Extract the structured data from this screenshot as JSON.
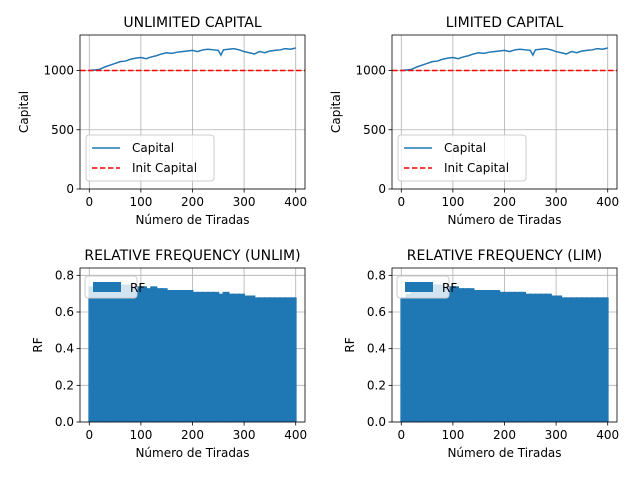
{
  "colors": {
    "series_line": "#1f77b4",
    "init_line": "#ff0000",
    "bars": "#1f77b4",
    "grid": "#b0b0b0",
    "axes": "#000000",
    "legend_border": "#cccccc"
  },
  "chart_data": [
    {
      "type": "line",
      "title": "UNLIMITED CAPITAL",
      "xlabel": "Número de Tiradas",
      "ylabel": "Capital",
      "xlim": [
        -18,
        418
      ],
      "ylim": [
        0,
        1300
      ],
      "xticks": [
        0,
        100,
        200,
        300,
        400
      ],
      "yticks": [
        0,
        500,
        1000
      ],
      "grid": true,
      "legend_placement": "lower-left",
      "series": [
        {
          "name": "Capital",
          "style": "solid",
          "x": [
            0,
            10,
            20,
            30,
            40,
            50,
            60,
            70,
            80,
            90,
            100,
            110,
            120,
            130,
            140,
            150,
            160,
            170,
            180,
            190,
            200,
            210,
            220,
            230,
            240,
            250,
            255,
            260,
            270,
            280,
            290,
            300,
            310,
            320,
            330,
            340,
            350,
            360,
            370,
            380,
            390,
            400
          ],
          "y": [
            1000,
            1005,
            1010,
            1030,
            1045,
            1060,
            1075,
            1080,
            1095,
            1105,
            1110,
            1100,
            1115,
            1125,
            1140,
            1150,
            1145,
            1155,
            1160,
            1165,
            1170,
            1160,
            1175,
            1180,
            1175,
            1170,
            1130,
            1175,
            1180,
            1185,
            1175,
            1160,
            1150,
            1140,
            1160,
            1150,
            1165,
            1170,
            1175,
            1185,
            1180,
            1190
          ]
        },
        {
          "name": "Init Capital",
          "style": "dashed",
          "x": [
            -18,
            418
          ],
          "y": [
            1000,
            1000
          ]
        }
      ]
    },
    {
      "type": "line",
      "title": "LIMITED CAPITAL",
      "xlabel": "Número de Tiradas",
      "ylabel": "Capital",
      "xlim": [
        -18,
        418
      ],
      "ylim": [
        0,
        1300
      ],
      "xticks": [
        0,
        100,
        200,
        300,
        400
      ],
      "yticks": [
        0,
        500,
        1000
      ],
      "grid": true,
      "legend_placement": "lower-left",
      "series": [
        {
          "name": "Capital",
          "style": "solid",
          "x": [
            0,
            10,
            20,
            30,
            40,
            50,
            60,
            70,
            80,
            90,
            100,
            110,
            120,
            130,
            140,
            150,
            160,
            170,
            180,
            190,
            200,
            210,
            220,
            230,
            240,
            250,
            255,
            260,
            270,
            280,
            290,
            300,
            310,
            320,
            330,
            340,
            350,
            360,
            370,
            380,
            390,
            400
          ],
          "y": [
            1000,
            1005,
            1010,
            1030,
            1045,
            1060,
            1075,
            1080,
            1095,
            1105,
            1110,
            1100,
            1115,
            1125,
            1140,
            1150,
            1145,
            1155,
            1160,
            1165,
            1170,
            1160,
            1175,
            1180,
            1175,
            1170,
            1130,
            1175,
            1180,
            1185,
            1175,
            1160,
            1150,
            1140,
            1160,
            1150,
            1165,
            1170,
            1175,
            1185,
            1180,
            1190
          ]
        },
        {
          "name": "Init Capital",
          "style": "dashed",
          "x": [
            -18,
            418
          ],
          "y": [
            1000,
            1000
          ]
        }
      ]
    },
    {
      "type": "bar",
      "title": "RELATIVE FREQUENCY (UNLIM)",
      "xlabel": "Número de Tiradas",
      "ylabel": "RF",
      "xlim": [
        -18,
        418
      ],
      "ylim": [
        0,
        0.84
      ],
      "xticks": [
        0,
        100,
        200,
        300,
        400
      ],
      "yticks": [
        0.0,
        0.2,
        0.4,
        0.6,
        0.8
      ],
      "ytick_labels": [
        "0.0",
        "0.2",
        "0.4",
        "0.6",
        "0.8"
      ],
      "grid": true,
      "legend_placement": "upper-left",
      "series": [
        {
          "name": "RF",
          "x": [
            5,
            15,
            25,
            35,
            45,
            55,
            65,
            75,
            85,
            95,
            105,
            115,
            125,
            135,
            145,
            155,
            165,
            175,
            185,
            195,
            205,
            215,
            225,
            235,
            245,
            255,
            265,
            275,
            285,
            295,
            305,
            315,
            325,
            335,
            345,
            355,
            365,
            375,
            385,
            395
          ],
          "values": [
            0.74,
            0.75,
            0.76,
            0.76,
            0.75,
            0.76,
            0.75,
            0.75,
            0.74,
            0.74,
            0.74,
            0.73,
            0.74,
            0.73,
            0.73,
            0.72,
            0.72,
            0.72,
            0.72,
            0.72,
            0.71,
            0.71,
            0.71,
            0.71,
            0.71,
            0.7,
            0.71,
            0.7,
            0.7,
            0.7,
            0.69,
            0.69,
            0.68,
            0.68,
            0.68,
            0.68,
            0.68,
            0.68,
            0.68,
            0.68
          ]
        }
      ]
    },
    {
      "type": "bar",
      "title": "RELATIVE FREQUENCY (LIM)",
      "xlabel": "Número de Tiradas",
      "ylabel": "RF",
      "xlim": [
        -18,
        418
      ],
      "ylim": [
        0,
        0.84
      ],
      "xticks": [
        0,
        100,
        200,
        300,
        400
      ],
      "yticks": [
        0.0,
        0.2,
        0.4,
        0.6,
        0.8
      ],
      "ytick_labels": [
        "0.0",
        "0.2",
        "0.4",
        "0.6",
        "0.8"
      ],
      "grid": true,
      "legend_placement": "upper-left",
      "series": [
        {
          "name": "RF",
          "x": [
            5,
            15,
            25,
            35,
            45,
            55,
            65,
            75,
            85,
            95,
            105,
            115,
            125,
            135,
            145,
            155,
            165,
            175,
            185,
            195,
            205,
            215,
            225,
            235,
            245,
            255,
            265,
            275,
            285,
            295,
            305,
            315,
            325,
            335,
            345,
            355,
            365,
            375,
            385,
            395
          ],
          "values": [
            0.68,
            0.7,
            0.72,
            0.73,
            0.74,
            0.75,
            0.75,
            0.75,
            0.74,
            0.74,
            0.74,
            0.73,
            0.73,
            0.73,
            0.72,
            0.72,
            0.72,
            0.72,
            0.72,
            0.71,
            0.71,
            0.71,
            0.71,
            0.71,
            0.7,
            0.7,
            0.7,
            0.7,
            0.7,
            0.69,
            0.69,
            0.68,
            0.68,
            0.68,
            0.68,
            0.68,
            0.68,
            0.68,
            0.68,
            0.68
          ]
        }
      ]
    }
  ]
}
